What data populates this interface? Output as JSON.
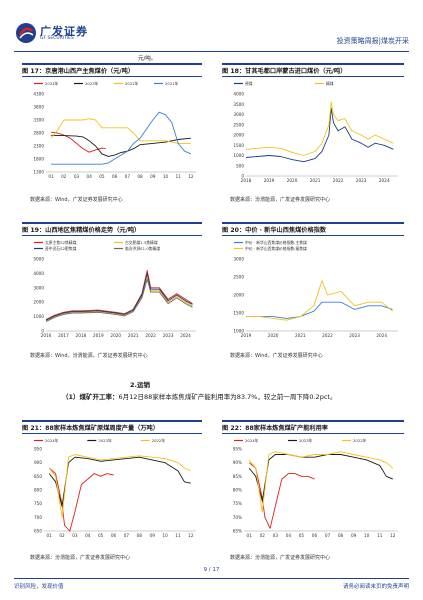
{
  "watermark": "",
  "header": {
    "logo_cn": "广发证券",
    "logo_en": "GF SECURITIES",
    "report_type": "投资策略周报|煤炭开采",
    "brand_color": "#1f3f8f"
  },
  "continued_unit": "元/吨。",
  "figures": [
    {
      "id": "fig17",
      "title": "图 17：京唐港山西产主焦煤价（元/吨）",
      "source": "数据来源：Wind，广发证券发展研究中心"
    },
    {
      "id": "fig18",
      "title": "图 18：甘其毛都口岸蒙古进口煤价（元/吨）",
      "source": "数据来源：汾渭能源，广发证券发展研究中心"
    },
    {
      "id": "fig19",
      "title": "图 19：山西地区焦精煤价格走势（元/吨）",
      "source": "数据来源：Wind，汾渭能源，广发证券发展研究中心"
    },
    {
      "id": "fig20",
      "title": "图 20：中价 · 新华山西焦煤价格指数",
      "source": "数据来源：Wind，广发证券发展研究中心"
    },
    {
      "id": "fig21",
      "title": "图 21：88家样本炼焦煤矿原煤周度产量（万吨）",
      "source": "数据来源：汾渭能源，广发证券发展研究中心"
    },
    {
      "id": "fig22",
      "title": "图 22：88家样本炼焦煤矿产能利用率",
      "source": "数据来源：汾渭能源，广发证券发展研究中心"
    }
  ],
  "section": {
    "heading": "2.运销",
    "para_lead": "（1）煤矿开工率：",
    "para_body": "6月12日88家样本炼焦煤矿产能利用率为83.7%，较之前一周下降0.2pct。"
  },
  "footer": {
    "left": "识别风险，发现价值",
    "page": "9 / 17",
    "right": "请务必阅读末页的免责声明"
  },
  "chart_data": [
    {
      "id": "fig17",
      "type": "line",
      "x_ticks": [
        "01",
        "02",
        "03",
        "04",
        "05",
        "06",
        "07",
        "08",
        "09",
        "10",
        "11",
        "12"
      ],
      "y_ticks": [
        "1300",
        "1800",
        "2300",
        "2800",
        "3300",
        "3800",
        "4300"
      ],
      "ylim": [
        1300,
        4300
      ],
      "series": [
        {
          "name": "2024年",
          "color": "#e0201b",
          "x": [
            1,
            1.5,
            2,
            2.5,
            3,
            3.5,
            4,
            4.5,
            5,
            5.3
          ],
          "y": [
            2830,
            2800,
            2720,
            2600,
            2400,
            2200,
            2060,
            2150,
            2220,
            2200
          ]
        },
        {
          "name": "2023年",
          "color": "#1a1a1a",
          "x": [
            1,
            2,
            3,
            3.5,
            4,
            4.5,
            5,
            5.5,
            6,
            6.5,
            7,
            7.5,
            8,
            9,
            10,
            11,
            12
          ],
          "y": [
            2700,
            2700,
            2680,
            2650,
            2500,
            2300,
            2000,
            1900,
            1950,
            2050,
            2100,
            2200,
            2350,
            2400,
            2450,
            2550,
            2600
          ]
        },
        {
          "name": "2022年",
          "color": "#f0c419",
          "x": [
            1,
            1.5,
            2,
            3,
            3.5,
            4,
            4.5,
            5,
            6,
            7,
            7.5,
            8,
            9,
            10,
            11,
            12
          ],
          "y": [
            2600,
            2900,
            3300,
            3300,
            3300,
            3350,
            3300,
            3000,
            3000,
            3000,
            2800,
            2500,
            2500,
            2500,
            2400,
            2400
          ]
        },
        {
          "name": "2021年",
          "color": "#3a7fd5",
          "x": [
            1,
            2,
            3,
            4,
            5,
            5.5,
            6,
            7,
            7.5,
            8,
            9,
            9.5,
            10,
            10.5,
            11,
            11.5,
            12
          ],
          "y": [
            1600,
            1600,
            1600,
            1600,
            1600,
            1650,
            1800,
            2100,
            2400,
            2600,
            3300,
            3600,
            3500,
            3200,
            2400,
            2100,
            2000
          ]
        }
      ]
    },
    {
      "id": "fig18",
      "type": "line",
      "x_ticks": [
        "2018",
        "2019",
        "2020",
        "2021",
        "2022",
        "2023",
        "2024"
      ],
      "y_ticks": [
        "0",
        "500",
        "1000",
        "1500",
        "2000",
        "2500",
        "3000",
        "3500",
        "4000"
      ],
      "ylim": [
        0,
        4000
      ],
      "series": [
        {
          "name": "原煤",
          "color": "#1a3f7f",
          "x": [
            2018,
            2018.5,
            2019,
            2019.5,
            2020,
            2020.5,
            2021,
            2021.3,
            2021.6,
            2021.7,
            2021.8,
            2022,
            2022.3,
            2022.6,
            2023,
            2023.3,
            2023.6,
            2024,
            2024.4
          ],
          "y": [
            900,
            950,
            1000,
            950,
            800,
            700,
            850,
            1200,
            2000,
            3300,
            2600,
            2200,
            2400,
            1800,
            1600,
            1400,
            1600,
            1500,
            1300
          ]
        },
        {
          "name": "精煤",
          "color": "#f0c419",
          "x": [
            2018,
            2018.5,
            2019,
            2019.5,
            2020,
            2020.5,
            2021,
            2021.3,
            2021.6,
            2021.7,
            2021.8,
            2022,
            2022.3,
            2022.6,
            2023,
            2023.3,
            2023.6,
            2024,
            2024.4
          ],
          "y": [
            1300,
            1350,
            1400,
            1350,
            1150,
            1000,
            1200,
            1600,
            2500,
            3600,
            3000,
            2700,
            2800,
            2200,
            2000,
            1800,
            2000,
            1800,
            1600
          ]
        }
      ]
    },
    {
      "id": "fig19",
      "type": "line",
      "x_ticks": [
        "2016",
        "2017",
        "2018",
        "2019",
        "2020",
        "2021",
        "2022",
        "2023",
        "2024"
      ],
      "y_ticks": [
        "0",
        "1000",
        "2000",
        "3000",
        "4000",
        "5000"
      ],
      "ylim": [
        0,
        5000
      ],
      "series": [
        {
          "name": "太原主焦S2焦精煤",
          "color": "#e0201b",
          "x": [
            2016,
            2016.5,
            2017,
            2017.5,
            2018,
            2019,
            2020,
            2020.5,
            2021,
            2021.5,
            2021.8,
            2022,
            2022.5,
            2023,
            2023.5,
            2024,
            2024.4
          ],
          "y": [
            800,
            1100,
            1300,
            1400,
            1400,
            1450,
            1300,
            1200,
            1500,
            2600,
            4200,
            3000,
            3000,
            2200,
            2600,
            2200,
            1900
          ]
        },
        {
          "name": "古交肥煤1.3焦精煤",
          "color": "#f0c419",
          "x": [
            2016,
            2016.5,
            2017,
            2017.5,
            2018,
            2019,
            2020,
            2020.5,
            2021,
            2021.5,
            2021.8,
            2022,
            2022.5,
            2023,
            2023.5,
            2024,
            2024.4
          ],
          "y": [
            700,
            1000,
            1200,
            1300,
            1300,
            1350,
            1200,
            1100,
            1400,
            2400,
            3800,
            2800,
            2800,
            2000,
            2400,
            2000,
            1750
          ]
        },
        {
          "name": "晋中灵石S2肥焦煤",
          "color": "#1a3f7f",
          "x": [
            2016,
            2016.5,
            2017,
            2017.5,
            2018,
            2019,
            2020,
            2020.5,
            2021,
            2021.5,
            2021.8,
            2022,
            2022.5,
            2023,
            2023.5,
            2024,
            2024.4
          ],
          "y": [
            750,
            1050,
            1250,
            1350,
            1350,
            1400,
            1250,
            1150,
            1450,
            2500,
            4000,
            2900,
            2900,
            2100,
            2500,
            2100,
            1850
          ]
        },
        {
          "name": "临汾洪洞S1.0焦精煤",
          "color": "#6a6a6a",
          "x": [
            2016,
            2016.5,
            2017,
            2017.5,
            2018,
            2019,
            2020,
            2020.5,
            2021,
            2021.5,
            2021.8,
            2022,
            2022.5,
            2023,
            2023.5,
            2024,
            2024.4
          ],
          "y": [
            650,
            950,
            1150,
            1250,
            1250,
            1300,
            1150,
            1050,
            1350,
            2300,
            3600,
            2700,
            2700,
            1900,
            2300,
            1900,
            1650
          ]
        }
      ]
    },
    {
      "id": "fig20",
      "type": "line",
      "x_ticks": [
        "2019",
        "2020",
        "2021",
        "2022",
        "2023",
        "2024"
      ],
      "y_ticks": [
        "1000",
        "1500",
        "2000",
        "2500",
        "3000"
      ],
      "ylim": [
        1000,
        3000
      ],
      "series": [
        {
          "name": "中价 · 新华山西焦煤价格指数:主焦煤",
          "color": "#3a7fd5",
          "x": [
            2019,
            2019.5,
            2020,
            2020.5,
            2021,
            2021.5,
            2021.8,
            2022,
            2022.5,
            2023,
            2023.5,
            2024,
            2024.4
          ],
          "y": [
            1400,
            1400,
            1400,
            1350,
            1400,
            1550,
            1800,
            1800,
            1800,
            1600,
            1700,
            1700,
            1600
          ]
        },
        {
          "name": "中价 · 新华山西焦煤价格指数:瘦焦煤",
          "color": "#f0c419",
          "x": [
            2019,
            2019.5,
            2020,
            2020.5,
            2021,
            2021.5,
            2021.8,
            2022,
            2022.5,
            2023,
            2023.5,
            2024,
            2024.4
          ],
          "y": [
            1400,
            1400,
            1350,
            1300,
            1400,
            1700,
            2400,
            2000,
            2100,
            1700,
            1800,
            1800,
            1550
          ]
        }
      ]
    },
    {
      "id": "fig21",
      "type": "line",
      "x_ticks": [
        "01",
        "02",
        "03",
        "04",
        "05",
        "06",
        "07",
        "08",
        "09",
        "10",
        "11",
        "12"
      ],
      "y_ticks": [
        "650",
        "700",
        "750",
        "800",
        "850",
        "900",
        "950"
      ],
      "ylim": [
        650,
        950
      ],
      "series": [
        {
          "name": "2024年",
          "color": "#e0201b",
          "x": [
            1,
            1.5,
            2,
            2.2,
            2.6,
            3,
            3.5,
            4,
            4.5,
            5,
            5.5,
            6
          ],
          "y": [
            880,
            860,
            750,
            670,
            650,
            720,
            820,
            840,
            860,
            850,
            860,
            855
          ]
        },
        {
          "name": "2023年",
          "color": "#1a1a1a",
          "x": [
            1,
            1.5,
            2,
            2.5,
            3,
            4,
            5,
            6,
            7,
            8,
            9,
            10,
            11,
            11.5,
            12
          ],
          "y": [
            860,
            830,
            740,
            900,
            920,
            915,
            905,
            910,
            915,
            920,
            910,
            900,
            870,
            830,
            825
          ]
        },
        {
          "name": "2022年",
          "color": "#f0c419",
          "x": [
            1,
            1.5,
            2,
            2.5,
            3,
            4,
            5,
            6,
            7,
            8,
            9,
            10,
            11,
            11.5,
            12
          ],
          "y": [
            880,
            850,
            700,
            920,
            930,
            920,
            910,
            915,
            920,
            925,
            920,
            915,
            900,
            880,
            870
          ]
        }
      ]
    },
    {
      "id": "fig22",
      "type": "line",
      "x_ticks": [
        "01",
        "02",
        "03",
        "04",
        "05",
        "06",
        "07",
        "08",
        "09",
        "10",
        "11",
        "12"
      ],
      "y_ticks": [
        "65%",
        "70%",
        "75%",
        "80%",
        "85%",
        "90%",
        "95%"
      ],
      "ylim": [
        65,
        95
      ],
      "series": [
        {
          "name": "2024年",
          "color": "#e0201b",
          "x": [
            1,
            1.5,
            2,
            2.2,
            2.6,
            3,
            3.5,
            4,
            4.5,
            5,
            5.5,
            6
          ],
          "y": [
            90,
            88,
            77,
            70,
            66,
            74,
            84,
            86,
            86,
            85,
            85,
            84
          ]
        },
        {
          "name": "2023年",
          "color": "#1a1a1a",
          "x": [
            1,
            1.5,
            2,
            2.5,
            3,
            4,
            5,
            6,
            7,
            8,
            9,
            10,
            11,
            11.5,
            12
          ],
          "y": [
            88,
            85,
            76,
            91,
            93,
            93,
            92,
            92,
            93,
            93,
            92,
            91,
            89,
            85,
            84
          ]
        },
        {
          "name": "2022年",
          "color": "#f0c419",
          "x": [
            1,
            1.5,
            2,
            2.5,
            3,
            4,
            5,
            6,
            7,
            8,
            9,
            10,
            11,
            11.5,
            12
          ],
          "y": [
            91,
            88,
            72,
            93,
            94,
            93,
            92,
            93,
            93,
            94,
            93,
            92,
            91,
            90,
            88
          ]
        }
      ]
    }
  ]
}
